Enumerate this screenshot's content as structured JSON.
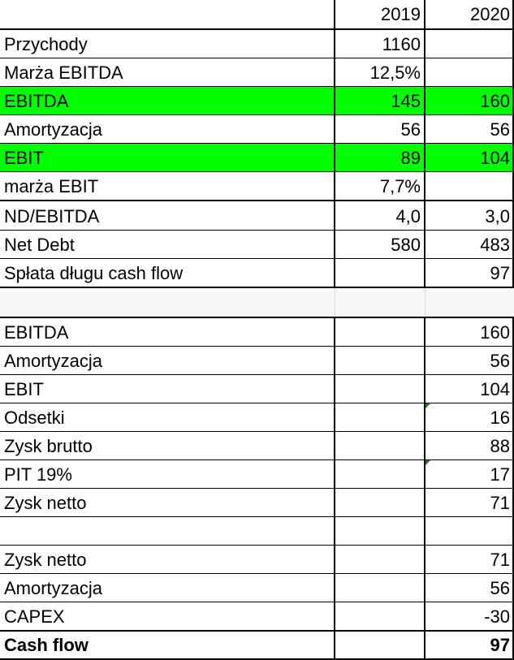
{
  "header": {
    "label": "",
    "y2019": "2019",
    "y2020": "2020"
  },
  "table1": [
    {
      "label": "Przychody",
      "y2019": "1160",
      "y2020": "",
      "highlight": false
    },
    {
      "label": "Marża EBITDA",
      "y2019": "12,5%",
      "y2020": "",
      "highlight": false
    },
    {
      "label": "EBITDA",
      "y2019": "145",
      "y2020": "160",
      "highlight": true
    },
    {
      "label": "Amortyzacja",
      "y2019": "56",
      "y2020": "56",
      "highlight": false
    },
    {
      "label": "EBIT",
      "y2019": "89",
      "y2020": "104",
      "highlight": true
    },
    {
      "label": "marża EBIT",
      "y2019": "7,7%",
      "y2020": "",
      "highlight": false
    },
    {
      "label": "ND/EBITDA",
      "y2019": "4,0",
      "y2020": "3,0",
      "highlight": false
    },
    {
      "label": "Net Debt",
      "y2019": "580",
      "y2020": "483",
      "highlight": false
    },
    {
      "label": "Spłata długu cash flow",
      "y2019": "",
      "y2020": "97",
      "highlight": false
    }
  ],
  "table2": [
    {
      "label": "EBITDA",
      "y2019": "",
      "y2020": "160"
    },
    {
      "label": "Amortyzacja",
      "y2019": "",
      "y2020": "56"
    },
    {
      "label": "EBIT",
      "y2019": "",
      "y2020": "104"
    },
    {
      "label": "Odsetki",
      "y2019": "",
      "y2020": "16"
    },
    {
      "label": "Zysk brutto",
      "y2019": "",
      "y2020": "88"
    },
    {
      "label": "PIT 19%",
      "y2019": "",
      "y2020": "17"
    },
    {
      "label": "Zysk netto",
      "y2019": "",
      "y2020": "71"
    }
  ],
  "table3": [
    {
      "label": "Zysk netto",
      "y2019": "",
      "y2020": "71",
      "bold": false
    },
    {
      "label": "Amortyzacja",
      "y2019": "",
      "y2020": "56",
      "bold": false
    },
    {
      "label": "CAPEX",
      "y2019": "",
      "y2020": "-30",
      "bold": false
    },
    {
      "label": "Cash flow",
      "y2019": "",
      "y2020": "97",
      "bold": true
    }
  ],
  "colors": {
    "highlight": "#00ff00",
    "grid": "#000000",
    "note_marker": "#1f7a1f"
  }
}
